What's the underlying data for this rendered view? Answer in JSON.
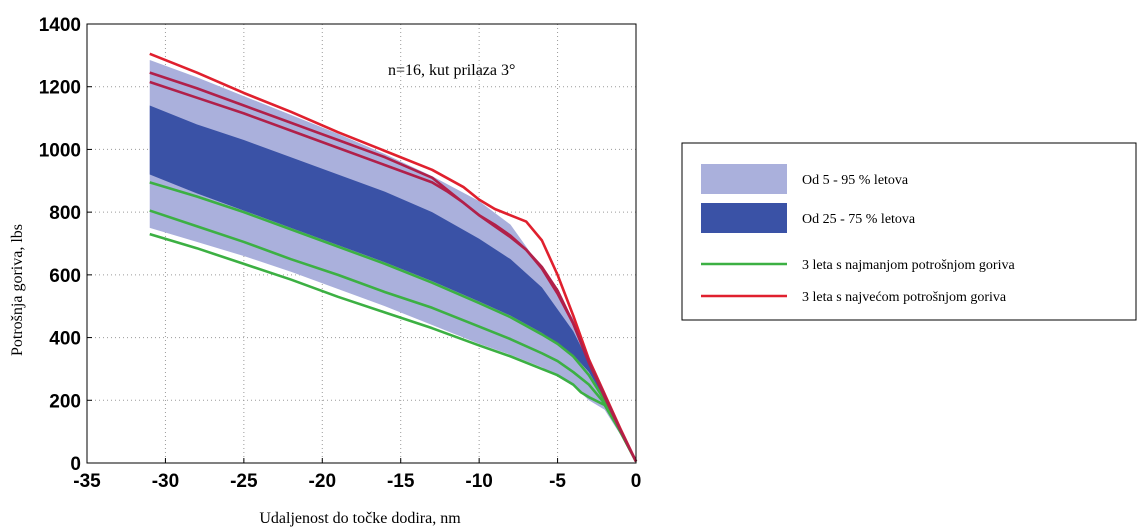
{
  "chart_data": {
    "type": "area",
    "title": "",
    "xlabel": "Udaljenost do točke dodira, nm",
    "ylabel": "Potrošnja goriva, lbs",
    "xlim": [
      -35,
      0
    ],
    "ylim": [
      0,
      1400
    ],
    "xticks": [
      -35,
      -30,
      -25,
      -20,
      -15,
      -10,
      -5,
      0
    ],
    "yticks": [
      0,
      200,
      400,
      600,
      800,
      1000,
      1200,
      1400
    ],
    "grid": true,
    "legend_position": "right",
    "annotation": "n=16, kut prilaza 3°",
    "colors": {
      "band_outer": "#aab0dc",
      "band_inner": "#3a52a6",
      "low_lines": "#3cb043",
      "high_lines": "#e0202e",
      "high_lines_inside": "#b0204a"
    },
    "bands": [
      {
        "name": "Od 5 - 95 % letova",
        "x": [
          -31,
          -28,
          -25,
          -22,
          -19,
          -16,
          -13,
          -10,
          -8,
          -6,
          -4,
          -3,
          -2,
          -1,
          0
        ],
        "lower": [
          750,
          705,
          660,
          610,
          555,
          500,
          440,
          380,
          345,
          305,
          245,
          200,
          170,
          90,
          5
        ],
        "upper": [
          1285,
          1230,
          1170,
          1110,
          1050,
          985,
          915,
          835,
          760,
          620,
          460,
          340,
          230,
          110,
          5
        ]
      },
      {
        "name": "Od 25 - 75 % letova",
        "x": [
          -31,
          -28,
          -25,
          -22,
          -19,
          -16,
          -13,
          -10,
          -8,
          -6,
          -4,
          -3,
          -2,
          -1,
          0
        ],
        "lower": [
          920,
          860,
          805,
          750,
          695,
          640,
          580,
          515,
          470,
          415,
          345,
          290,
          205,
          95,
          5
        ],
        "upper": [
          1140,
          1080,
          1030,
          975,
          920,
          865,
          800,
          715,
          650,
          560,
          420,
          320,
          215,
          100,
          5
        ]
      }
    ],
    "series": [
      {
        "name": "3 leta s najmanjom potrošnjom goriva",
        "group": "low",
        "x": [
          -31,
          -28,
          -25,
          -22,
          -19,
          -16,
          -13,
          -10,
          -8,
          -6,
          -5,
          -4,
          -3.5,
          -3,
          -2,
          -1,
          0
        ],
        "values": [
          730,
          685,
          635,
          585,
          530,
          480,
          430,
          375,
          340,
          300,
          280,
          250,
          225,
          210,
          185,
          100,
          5
        ]
      },
      {
        "name": "3 leta s najmanjom potrošnjom goriva",
        "group": "low",
        "x": [
          -31,
          -28,
          -25,
          -22,
          -19,
          -16,
          -13,
          -10,
          -8,
          -6,
          -5,
          -4,
          -3,
          -2,
          -1,
          0
        ],
        "values": [
          805,
          755,
          705,
          650,
          600,
          545,
          495,
          435,
          395,
          350,
          325,
          290,
          250,
          190,
          100,
          5
        ]
      },
      {
        "name": "3 leta s najmanjom potrošnjom goriva",
        "group": "low",
        "x": [
          -31,
          -28,
          -25,
          -22,
          -19,
          -16,
          -13,
          -10,
          -8,
          -6,
          -5,
          -4,
          -3,
          -2,
          -1,
          0
        ],
        "values": [
          895,
          850,
          800,
          745,
          690,
          635,
          575,
          510,
          465,
          410,
          380,
          340,
          280,
          200,
          100,
          5
        ]
      },
      {
        "name": "3 leta s najvećom potrošnjom goriva",
        "group": "high",
        "x": [
          -31,
          -28,
          -25,
          -22,
          -19,
          -16,
          -13,
          -11,
          -10,
          -9,
          -8,
          -7,
          -6,
          -5,
          -4,
          -3,
          -2,
          -1,
          0
        ],
        "values": [
          1305,
          1245,
          1180,
          1120,
          1055,
          995,
          935,
          880,
          840,
          810,
          790,
          770,
          710,
          600,
          470,
          330,
          220,
          110,
          5
        ]
      },
      {
        "name": "3 leta s najvećom potrošnjom goriva",
        "group": "high",
        "x": [
          -31,
          -28,
          -25,
          -22,
          -19,
          -16,
          -13,
          -11.5,
          -10,
          -9,
          -8,
          -7,
          -6,
          -5,
          -4,
          -3,
          -2,
          -1,
          0
        ],
        "values": [
          1245,
          1195,
          1140,
          1085,
          1030,
          975,
          910,
          850,
          790,
          755,
          720,
          680,
          625,
          550,
          445,
          320,
          215,
          105,
          5
        ]
      },
      {
        "name": "3 leta s najvećom potrošnjom goriva",
        "group": "high",
        "x": [
          -31,
          -28,
          -25,
          -22,
          -19,
          -16,
          -13,
          -12,
          -11,
          -10,
          -9,
          -8,
          -7,
          -6,
          -5,
          -4,
          -3,
          -2,
          -1,
          0
        ],
        "values": [
          1215,
          1165,
          1115,
          1060,
          1005,
          950,
          895,
          865,
          830,
          790,
          760,
          725,
          680,
          620,
          540,
          445,
          320,
          210,
          105,
          5
        ]
      }
    ],
    "legend": [
      {
        "label": "Od 5 - 95 % letova",
        "kind": "band",
        "color": "#aab0dc"
      },
      {
        "label": "Od 25 - 75 % letova",
        "kind": "band",
        "color": "#3a52a6"
      },
      {
        "label": "3 leta s najmanjom potrošnjom goriva",
        "kind": "line",
        "color": "#3cb043"
      },
      {
        "label": "3 leta s najvećom potrošnjom goriva",
        "kind": "line",
        "color": "#e0202e"
      }
    ]
  }
}
